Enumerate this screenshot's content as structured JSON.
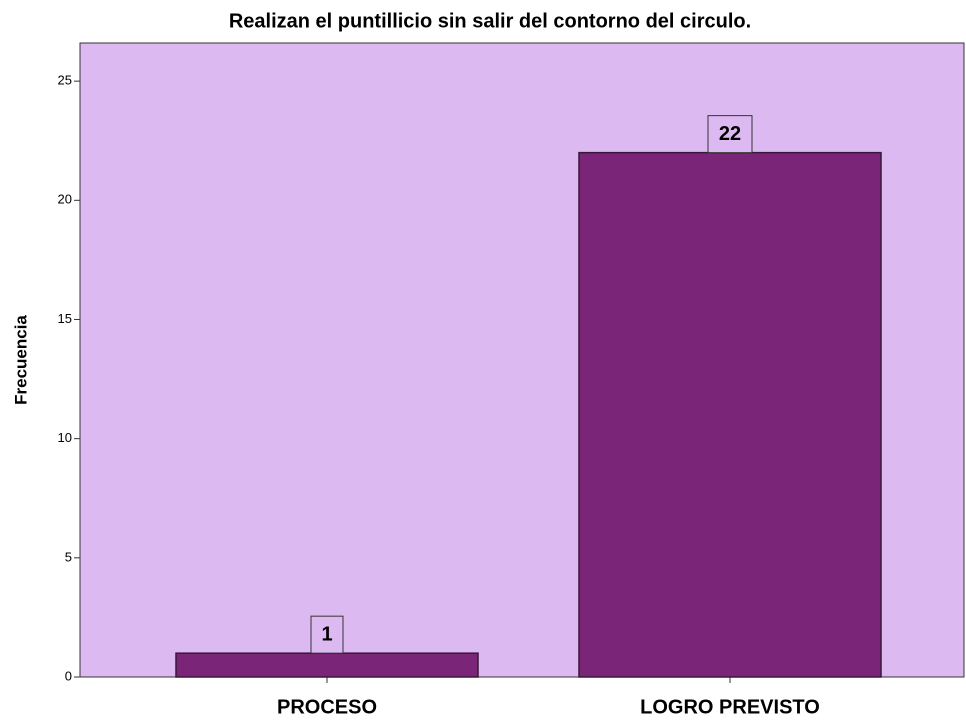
{
  "chart_data": {
    "type": "bar",
    "title": "Realizan el puntillicio sin salir del contorno del circulo.",
    "y_label": "Frecuencia",
    "categories": [
      "PROCESO",
      "LOGRO PREVISTO"
    ],
    "values": [
      1,
      22
    ],
    "color": "#7b2579",
    "ylim": [
      0,
      26.6
    ],
    "yticks": [
      0,
      5,
      10,
      15,
      20,
      25
    ],
    "grid": false
  }
}
